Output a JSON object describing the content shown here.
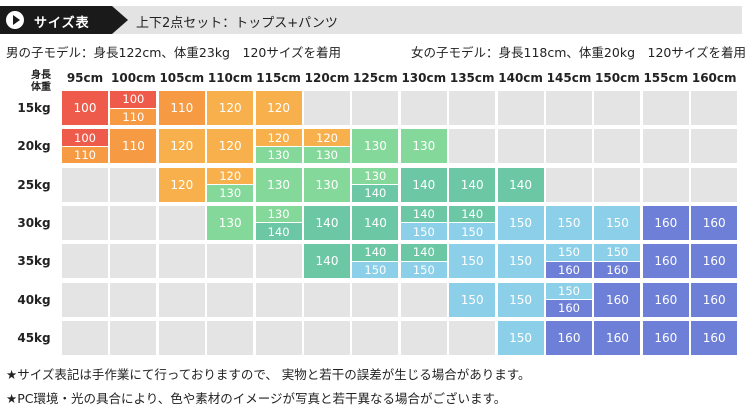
{
  "header": {
    "badge_label": "サイズ表",
    "subtitle": "上下2点セット：トップス+パンツ",
    "play_icon": "play-icon"
  },
  "models": {
    "boy": "男の子モデル：身長122cm、体重23kg　120サイズを着用",
    "girl": "女の子モデル：身長118cm、体重20kg　120サイズを着用"
  },
  "axis": {
    "height_label": "身長",
    "weight_label": "体重"
  },
  "colors": {
    "100": "#ee5b4a",
    "110": "#f79a44",
    "120": "#f8b04c",
    "130": "#84d99a",
    "140": "#6cc7a4",
    "150": "#8ccfe8",
    "160": "#6d7fd7",
    "empty": "#e4e4e4"
  },
  "size_table": {
    "heights": [
      "95cm",
      "100cm",
      "105cm",
      "110cm",
      "115cm",
      "120cm",
      "125cm",
      "130cm",
      "135cm",
      "140cm",
      "145cm",
      "150cm",
      "155cm",
      "160cm"
    ],
    "weights": [
      "15kg",
      "20kg",
      "25kg",
      "30kg",
      "35kg",
      "40kg",
      "45kg"
    ],
    "rows": [
      [
        [
          "100"
        ],
        [
          "100",
          "110"
        ],
        [
          "110"
        ],
        [
          "120"
        ],
        [
          "120"
        ],
        [],
        [],
        [],
        [],
        [],
        [],
        [],
        [],
        []
      ],
      [
        [
          "100",
          "110"
        ],
        [
          "110"
        ],
        [
          "120"
        ],
        [
          "120"
        ],
        [
          "120",
          "130"
        ],
        [
          "120",
          "130"
        ],
        [
          "130"
        ],
        [
          "130"
        ],
        [],
        [],
        [],
        [],
        [],
        []
      ],
      [
        [],
        [],
        [
          "120"
        ],
        [
          "120",
          "130"
        ],
        [
          "130"
        ],
        [
          "130"
        ],
        [
          "130",
          "140"
        ],
        [
          "140"
        ],
        [
          "140"
        ],
        [
          "140"
        ],
        [],
        [],
        [],
        []
      ],
      [
        [],
        [],
        [],
        [
          "130"
        ],
        [
          "130",
          "140"
        ],
        [
          "140"
        ],
        [
          "140"
        ],
        [
          "140",
          "150"
        ],
        [
          "140",
          "150"
        ],
        [
          "150"
        ],
        [
          "150"
        ],
        [
          "150"
        ],
        [
          "160"
        ],
        [
          "160"
        ]
      ],
      [
        [],
        [],
        [],
        [],
        [],
        [
          "140"
        ],
        [
          "140",
          "150"
        ],
        [
          "140",
          "150"
        ],
        [
          "150"
        ],
        [
          "150"
        ],
        [
          "150",
          "160"
        ],
        [
          "150",
          "160"
        ],
        [
          "160"
        ],
        [
          "160"
        ]
      ],
      [
        [],
        [],
        [],
        [],
        [],
        [],
        [],
        [],
        [
          "150"
        ],
        [
          "150"
        ],
        [
          "150",
          "160"
        ],
        [
          "160"
        ],
        [
          "160"
        ],
        [
          "160"
        ]
      ],
      [
        [],
        [],
        [],
        [],
        [],
        [],
        [],
        [],
        [],
        [
          "150"
        ],
        [
          "160"
        ],
        [
          "160"
        ],
        [
          "160"
        ],
        [
          "160"
        ]
      ]
    ]
  },
  "notes": [
    "★サイズ表記は手作業にて行っておりますので、 実物と若干の誤差が生じる場合があります。",
    "★PC環境・光の具合により、色や素材のイメージが写真と若干異なる場合がございます。"
  ]
}
